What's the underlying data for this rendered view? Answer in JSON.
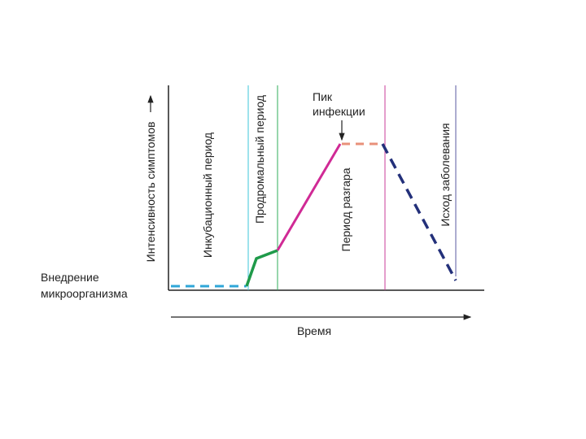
{
  "y_axis_label": "Интенсивность симптомов",
  "x_axis_label": "Время",
  "periods": {
    "incubation": "Инкубационный период",
    "prodromal": "Продромальный период",
    "peak": "Период разгара",
    "outcome": "Исход заболевания"
  },
  "peak_annotation": [
    "Пик",
    "инфекции"
  ],
  "entry_annotation": [
    "Внедрение",
    "микроорганизма"
  ]
}
